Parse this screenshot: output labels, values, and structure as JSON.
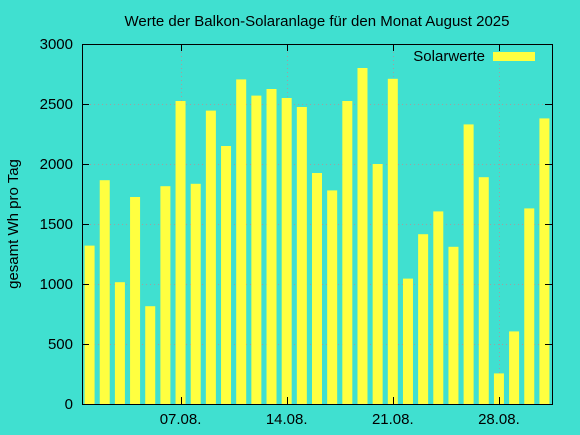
{
  "chart_data": {
    "type": "bar",
    "title": "Werte der Balkon-Solaranlage für den Monat August 2025",
    "ylabel": "gesamt Wh pro Tag",
    "xlabel": "",
    "ylim": [
      0,
      3000
    ],
    "yticks": [
      0,
      500,
      1000,
      1500,
      2000,
      2500,
      3000
    ],
    "xticks": [
      {
        "day": 7,
        "label": "07.08."
      },
      {
        "day": 14,
        "label": "14.08."
      },
      {
        "day": 21,
        "label": "21.08."
      },
      {
        "day": 28,
        "label": "28.08."
      }
    ],
    "grid": true,
    "legend_position": "top-right",
    "series": [
      {
        "name": "Solarwerte",
        "color": "#ffff40",
        "days": [
          1,
          2,
          3,
          4,
          5,
          6,
          7,
          8,
          9,
          10,
          11,
          12,
          13,
          14,
          15,
          16,
          17,
          18,
          19,
          20,
          21,
          22,
          23,
          24,
          25,
          26,
          27,
          28,
          29,
          30,
          31
        ],
        "values": [
          1320,
          1865,
          1015,
          1725,
          815,
          1815,
          2525,
          1835,
          2445,
          2150,
          2705,
          2570,
          2625,
          2550,
          2475,
          1925,
          1780,
          2525,
          2800,
          2000,
          2710,
          1045,
          1415,
          1605,
          1310,
          2330,
          1890,
          255,
          605,
          1630,
          2380
        ]
      }
    ],
    "background_color": "#40e0d0",
    "bar_color": "#ffff40"
  }
}
